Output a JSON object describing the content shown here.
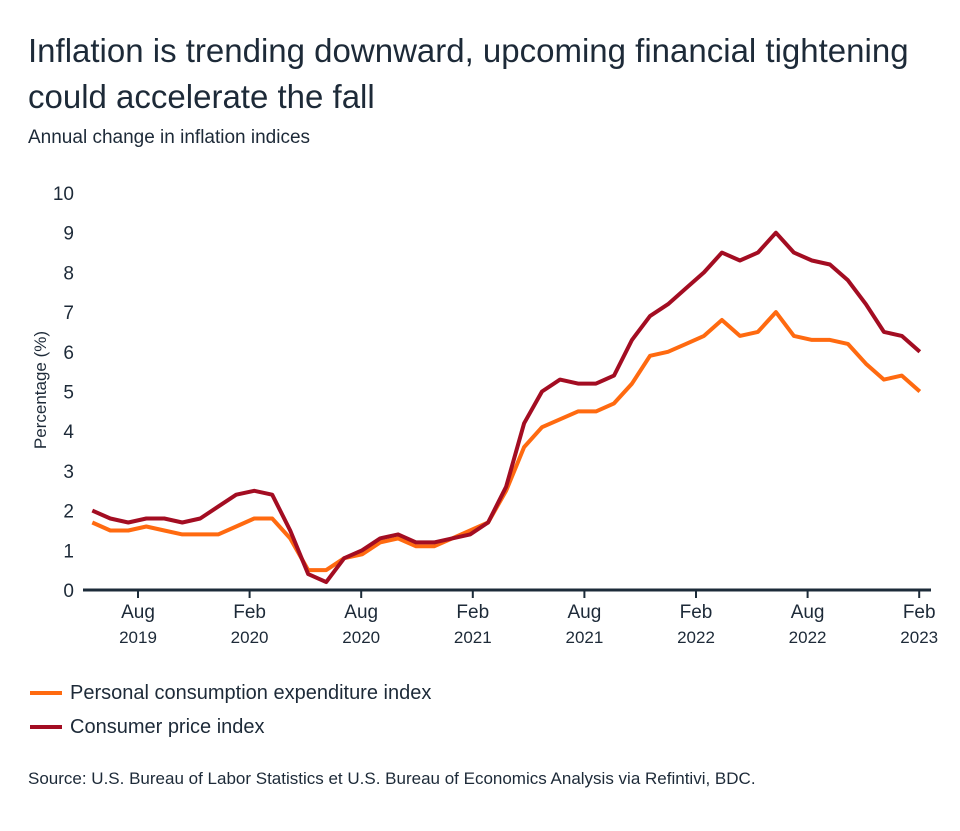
{
  "title": "Inflation is trending downward, upcoming financial tightening could accelerate the fall",
  "subtitle": "Annual change in inflation indices",
  "source": "Source: U.S. Bureau of Labor Statistics et U.S. Bureau of Economics Analysis via Refintivi, BDC.",
  "chart_data": {
    "type": "line",
    "title": "Inflation is trending downward, upcoming financial tightening could accelerate the fall",
    "subtitle": "Annual change in inflation indices",
    "xlabel": "",
    "ylabel": "Percentage (%)",
    "ylim": [
      0,
      10
    ],
    "yticks": [
      "0",
      "1",
      "2",
      "3",
      "4",
      "5",
      "6",
      "7",
      "8",
      "9",
      "10"
    ],
    "xticks": [
      {
        "month": "Aug",
        "year": "2019"
      },
      {
        "month": "Feb",
        "year": "2020"
      },
      {
        "month": "Aug",
        "year": "2020"
      },
      {
        "month": "Feb",
        "year": "2021"
      },
      {
        "month": "Aug",
        "year": "2021"
      },
      {
        "month": "Feb",
        "year": "2022"
      },
      {
        "month": "Aug",
        "year": "2022"
      },
      {
        "month": "Feb",
        "year": "2023"
      }
    ],
    "grid": false,
    "legend_position": "bottom-left",
    "x": [
      "2019-04",
      "2019-05",
      "2019-06",
      "2019-07",
      "2019-08",
      "2019-09",
      "2019-10",
      "2019-11",
      "2019-12",
      "2020-01",
      "2020-02",
      "2020-03",
      "2020-04",
      "2020-05",
      "2020-06",
      "2020-07",
      "2020-08",
      "2020-09",
      "2020-10",
      "2020-11",
      "2020-12",
      "2021-01",
      "2021-02",
      "2021-03",
      "2021-04",
      "2021-05",
      "2021-06",
      "2021-07",
      "2021-08",
      "2021-09",
      "2021-10",
      "2021-11",
      "2021-12",
      "2022-01",
      "2022-02",
      "2022-03",
      "2022-04",
      "2022-05",
      "2022-06",
      "2022-07",
      "2022-08",
      "2022-09",
      "2022-10",
      "2022-11",
      "2022-12",
      "2023-01",
      "2023-02"
    ],
    "series": [
      {
        "name": "Personal consumption expenditure index",
        "color": "#ff6a10",
        "values": [
          1.7,
          1.5,
          1.5,
          1.6,
          1.5,
          1.4,
          1.4,
          1.4,
          1.6,
          1.8,
          1.8,
          1.3,
          0.5,
          0.5,
          0.8,
          0.9,
          1.2,
          1.3,
          1.1,
          1.1,
          1.3,
          1.5,
          1.7,
          2.5,
          3.6,
          4.1,
          4.3,
          4.5,
          4.5,
          4.7,
          5.2,
          5.9,
          6.0,
          6.2,
          6.4,
          6.8,
          6.4,
          6.5,
          7.0,
          6.4,
          6.3,
          6.3,
          6.2,
          5.7,
          5.3,
          5.4,
          5.0
        ]
      },
      {
        "name": "Consumer price index",
        "color": "#a30d22",
        "values": [
          2.0,
          1.8,
          1.7,
          1.8,
          1.8,
          1.7,
          1.8,
          2.1,
          2.4,
          2.5,
          2.4,
          1.5,
          0.4,
          0.2,
          0.8,
          1.0,
          1.3,
          1.4,
          1.2,
          1.2,
          1.3,
          1.4,
          1.7,
          2.6,
          4.2,
          5.0,
          5.3,
          5.2,
          5.2,
          5.4,
          6.3,
          6.9,
          7.2,
          7.6,
          8.0,
          8.5,
          8.3,
          8.5,
          9.0,
          8.5,
          8.3,
          8.2,
          7.8,
          7.2,
          6.5,
          6.4,
          6.0
        ]
      }
    ]
  }
}
